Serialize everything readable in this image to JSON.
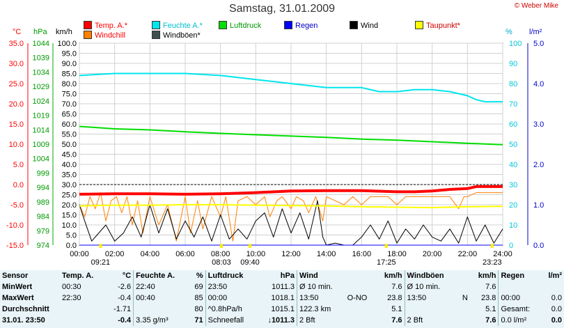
{
  "header": {
    "title": "Samstag, 31.01.2009",
    "copyright": "© Weber Mike"
  },
  "colors": {
    "temp": "#ff0000",
    "windchill": "#ff7f00",
    "humidity": "#00e5ee",
    "pressure": "#00dd00",
    "rain": "#0000ff",
    "wind": "#000000",
    "gust": "#404040",
    "dewpoint": "#ffff00"
  },
  "legend": [
    {
      "label": "Temp. A.*",
      "color": "#ff0000"
    },
    {
      "label": "Feuchte A.*",
      "color": "#00e5ee"
    },
    {
      "label": "Luftdruck",
      "color": "#00dd00"
    },
    {
      "label": "Regen",
      "color": "#0000ff"
    },
    {
      "label": "Wind",
      "color": "#000000"
    },
    {
      "label": "Taupunkt*",
      "color": "#ffff00"
    },
    {
      "label": "Windchill",
      "color": "#ff7f00"
    },
    {
      "label": "Windböen*",
      "color": "#405050"
    }
  ],
  "axis_units": {
    "temp": "°C",
    "pressure": "hPa",
    "wind": "km/h",
    "humidity": "%",
    "rain": "l/m²"
  },
  "chart_data": {
    "type": "line",
    "x_ticks": [
      "00:00",
      "02:00",
      "04:00",
      "06:00",
      "08:00",
      "10:00",
      "12:00",
      "14:00",
      "16:00",
      "18:00",
      "20:00",
      "22:00",
      "24:00"
    ],
    "y_axes": {
      "temp": {
        "range": [
          -15,
          35
        ],
        "ticks": [
          "35.0",
          "30.0",
          "25.0",
          "20.0",
          "15.0",
          "10.0",
          "5.0",
          "0.0",
          "-5.0",
          "-10.0",
          "-15.0"
        ]
      },
      "pressure": {
        "range": [
          974,
          1049
        ],
        "ticks": [
          "1044",
          "1039",
          "1034",
          "1029",
          "1024",
          "1019",
          "1014",
          "1009",
          "1004",
          "999",
          "994",
          "989",
          "984",
          "979",
          "974"
        ]
      },
      "wind": {
        "range": [
          0,
          100
        ],
        "ticks": [
          "100.0",
          "95.0",
          "90.0",
          "85.0",
          "80.0",
          "75.0",
          "70.0",
          "65.0",
          "60.0",
          "55.0",
          "50.0",
          "45.0",
          "40.0",
          "35.0",
          "30.0",
          "25.0",
          "20.0",
          "15.0",
          "10.0",
          "5.0",
          "0.0"
        ]
      },
      "humidity": {
        "range": [
          0,
          100
        ],
        "ticks": [
          "100",
          "90",
          "80",
          "70",
          "60",
          "50",
          "40",
          "30",
          "20",
          "10",
          "0"
        ]
      },
      "rain": {
        "range": [
          0,
          5
        ],
        "ticks": [
          "5.0",
          "4.0",
          "3.0",
          "2.0",
          "1.0",
          "0.0"
        ]
      }
    },
    "series": [
      {
        "name": "Feuchte A.*",
        "axis": "humidity",
        "x": [
          0,
          2,
          4,
          6,
          8,
          10,
          12,
          14,
          16,
          17,
          18,
          19,
          20,
          21,
          22,
          22.5,
          23,
          24
        ],
        "values": [
          84,
          85,
          85,
          85,
          84,
          82,
          80,
          78,
          78,
          76,
          76,
          77,
          77,
          76,
          74,
          72,
          71,
          71
        ]
      },
      {
        "name": "Luftdruck",
        "axis": "pressure",
        "x": [
          0,
          2,
          4,
          6,
          8,
          10,
          12,
          14,
          16,
          18,
          20,
          22,
          24
        ],
        "values": [
          1018.1,
          1017.2,
          1016.8,
          1016.1,
          1015.5,
          1015.0,
          1014.5,
          1014.0,
          1013.4,
          1013.0,
          1012.4,
          1011.8,
          1011.3
        ]
      },
      {
        "name": "Temp. A.*",
        "axis": "temp",
        "x": [
          0,
          2,
          4,
          6,
          8,
          10,
          12,
          14,
          16,
          18,
          19,
          20,
          21,
          22,
          22.5,
          24
        ],
        "values": [
          -2.4,
          -2.3,
          -2.3,
          -2.4,
          -2.3,
          -2.0,
          -1.6,
          -1.5,
          -1.5,
          -1.8,
          -1.8,
          -1.6,
          -1.2,
          -1.0,
          -0.5,
          -0.5
        ]
      },
      {
        "name": "Taupunkt*",
        "axis": "temp",
        "x": [
          0,
          2,
          4,
          6,
          8,
          10,
          12,
          14,
          16,
          18,
          20,
          22,
          24
        ],
        "values": [
          -5.3,
          -5.1,
          -5.1,
          -5.0,
          -5.0,
          -5.1,
          -5.2,
          -5.3,
          -5.5,
          -5.6,
          -5.7,
          -5.5,
          -5.4
        ]
      },
      {
        "name": "Windchill",
        "axis": "temp",
        "x": [
          0,
          0.3,
          0.6,
          0.9,
          1.2,
          1.5,
          1.8,
          2.1,
          2.4,
          2.7,
          3.0,
          3.3,
          3.6,
          4.0,
          4.5,
          5.0,
          5.5,
          6.0,
          6.3,
          6.7,
          7.0,
          7.5,
          8.0,
          8.3,
          8.7,
          9.0,
          9.5,
          10.0,
          10.5,
          10.8,
          11.2,
          11.5,
          12.0,
          12.3,
          12.7,
          13.0,
          13.4,
          13.8,
          14.0,
          14.5,
          15.0,
          15.5,
          16.0,
          16.5,
          17.0,
          17.5,
          18.0,
          18.5,
          19.0,
          20.0,
          21.0,
          21.5,
          21.8,
          22.0,
          22.5,
          23.0,
          24.0
        ],
        "values": [
          -5,
          -8,
          -3,
          -6,
          -2,
          -9,
          -4,
          -3,
          -7,
          -3,
          -10,
          -4,
          -12,
          -3,
          -10,
          -5,
          -14,
          -3,
          -12,
          -4,
          -11,
          -3,
          -8,
          -3,
          -14,
          -4,
          -3,
          -5,
          -3,
          -8,
          -4,
          -3,
          -6,
          -3,
          -4,
          -7,
          -3,
          -9,
          -3,
          -4,
          -5,
          -3,
          -5,
          -3,
          -3,
          -3,
          -5,
          -3,
          -3,
          -3,
          -3,
          -6,
          -3,
          -3,
          -2,
          -2,
          -2
        ]
      },
      {
        "name": "Wind",
        "axis": "wind",
        "x": [
          0,
          0.3,
          0.7,
          1.0,
          1.5,
          2.0,
          2.5,
          3.0,
          3.5,
          4.0,
          4.5,
          5.0,
          5.5,
          6.0,
          6.5,
          7.0,
          7.5,
          8.0,
          8.5,
          9.0,
          9.5,
          10.0,
          10.5,
          11.0,
          11.5,
          12.0,
          12.5,
          13.0,
          13.5,
          13.8,
          14.0,
          14.5,
          15.0,
          15.5,
          16.0,
          16.5,
          17.0,
          17.5,
          18.0,
          18.5,
          19.0,
          19.5,
          20.0,
          20.5,
          21.0,
          21.5,
          22.0,
          22.5,
          23.0,
          23.5,
          24.0
        ],
        "values": [
          20,
          12,
          2,
          5,
          10,
          2,
          6,
          14,
          4,
          20,
          6,
          18,
          3,
          12,
          4,
          14,
          2,
          15,
          3,
          8,
          3,
          12,
          16,
          4,
          18,
          6,
          16,
          3,
          22,
          4,
          0,
          1,
          0,
          0,
          4,
          10,
          3,
          12,
          1,
          8,
          3,
          10,
          4,
          2,
          8,
          1,
          14,
          2,
          10,
          1,
          8
        ]
      },
      {
        "name": "Regen",
        "axis": "rain",
        "x": [
          0,
          24
        ],
        "values": [
          0,
          0
        ]
      }
    ],
    "time_marks": [
      {
        "label": "09:21",
        "x": 1.2
      },
      {
        "label": "08:03",
        "x": 8.05
      },
      {
        "label": "09:40",
        "x": 9.67
      },
      {
        "label": "17:25",
        "x": 17.4
      },
      {
        "label": "23:23",
        "x": 23.4
      }
    ]
  },
  "stats": {
    "headers": [
      "Sensor",
      "Temp. A.",
      "°C",
      "Feuchte A.",
      "%",
      "Luftdruck",
      "hPa",
      "Wind",
      "km/h",
      "Windböen",
      "km/h",
      "Regen",
      "l/m²"
    ],
    "rows": [
      [
        "MinWert",
        "00:30",
        "-2.6",
        "22:40",
        "69",
        "23:50",
        "1011.3",
        "Ø 10 min.",
        "",
        "7.6",
        "Ø 10 min.",
        "7.6",
        "",
        "",
        ""
      ],
      [
        "MaxWert",
        "22:30",
        "-0.4",
        "00:40",
        "85",
        "00:00",
        "1018.1",
        "13:50",
        "O-NO",
        "23.8",
        "13:50",
        "N",
        "23.8",
        "00:00",
        "0.0"
      ],
      [
        "Durchschnitt",
        "",
        "-1.71",
        "",
        "80",
        "^0.8hPa/h",
        "1015.1",
        "122.3 km",
        "",
        "5.1",
        "",
        "",
        "5.1",
        "Gesamt:",
        "0.0"
      ],
      [
        "31.01. 23:50",
        "",
        "-0.4",
        "3.35 g/m³",
        "71",
        "Schneefall",
        "↓1011.3",
        "2 Bft",
        "",
        "7.6",
        "2 Bft",
        "",
        "7.6",
        "0.0 l/m²",
        "0.0"
      ]
    ]
  }
}
